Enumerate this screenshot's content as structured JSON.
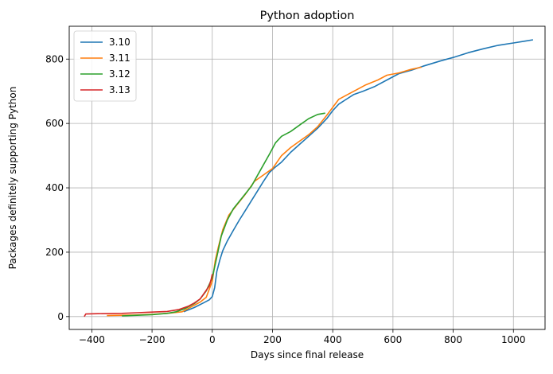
{
  "chart_data": {
    "type": "line",
    "title": "Python adoption",
    "xlabel": "Days since final release",
    "ylabel": "Packages definitely supporting Python",
    "xlim": [
      -475,
      1105
    ],
    "ylim": [
      -40,
      902
    ],
    "xticks": [
      -400,
      -200,
      0,
      200,
      400,
      600,
      800,
      1000
    ],
    "yticks": [
      0,
      200,
      400,
      600,
      800
    ],
    "grid": true,
    "legend_position": "top-left",
    "series": [
      {
        "name": "3.10",
        "color": "#1f77b4",
        "points": [
          [
            -95,
            15
          ],
          [
            -60,
            28
          ],
          [
            -30,
            42
          ],
          [
            -10,
            52
          ],
          [
            0,
            62
          ],
          [
            8,
            90
          ],
          [
            15,
            140
          ],
          [
            25,
            175
          ],
          [
            35,
            205
          ],
          [
            50,
            235
          ],
          [
            70,
            268
          ],
          [
            90,
            300
          ],
          [
            110,
            330
          ],
          [
            130,
            360
          ],
          [
            150,
            390
          ],
          [
            170,
            420
          ],
          [
            190,
            448
          ],
          [
            210,
            465
          ],
          [
            230,
            480
          ],
          [
            260,
            510
          ],
          [
            290,
            535
          ],
          [
            320,
            560
          ],
          [
            350,
            585
          ],
          [
            380,
            615
          ],
          [
            400,
            640
          ],
          [
            420,
            660
          ],
          [
            440,
            672
          ],
          [
            470,
            690
          ],
          [
            500,
            700
          ],
          [
            540,
            715
          ],
          [
            580,
            735
          ],
          [
            620,
            755
          ],
          [
            660,
            765
          ],
          [
            700,
            778
          ],
          [
            760,
            795
          ],
          [
            800,
            805
          ],
          [
            850,
            820
          ],
          [
            900,
            832
          ],
          [
            950,
            843
          ],
          [
            1000,
            850
          ],
          [
            1040,
            856
          ],
          [
            1065,
            860
          ]
        ]
      },
      {
        "name": "3.11",
        "color": "#ff7f0e",
        "points": [
          [
            -350,
            3
          ],
          [
            -250,
            5
          ],
          [
            -200,
            7
          ],
          [
            -150,
            10
          ],
          [
            -100,
            15
          ],
          [
            -70,
            30
          ],
          [
            -40,
            45
          ],
          [
            -20,
            60
          ],
          [
            0,
            110
          ],
          [
            10,
            175
          ],
          [
            20,
            215
          ],
          [
            35,
            270
          ],
          [
            55,
            315
          ],
          [
            80,
            345
          ],
          [
            110,
            380
          ],
          [
            140,
            420
          ],
          [
            170,
            440
          ],
          [
            200,
            460
          ],
          [
            230,
            500
          ],
          [
            260,
            525
          ],
          [
            290,
            545
          ],
          [
            320,
            565
          ],
          [
            350,
            590
          ],
          [
            380,
            625
          ],
          [
            400,
            650
          ],
          [
            420,
            675
          ],
          [
            450,
            690
          ],
          [
            480,
            705
          ],
          [
            510,
            720
          ],
          [
            550,
            735
          ],
          [
            580,
            750
          ],
          [
            620,
            757
          ],
          [
            660,
            768
          ],
          [
            695,
            775
          ]
        ]
      },
      {
        "name": "3.12",
        "color": "#2ca02c",
        "points": [
          [
            -300,
            2
          ],
          [
            -250,
            4
          ],
          [
            -200,
            6
          ],
          [
            -150,
            10
          ],
          [
            -120,
            15
          ],
          [
            -90,
            25
          ],
          [
            -60,
            40
          ],
          [
            -40,
            55
          ],
          [
            -20,
            80
          ],
          [
            0,
            120
          ],
          [
            15,
            185
          ],
          [
            30,
            250
          ],
          [
            50,
            300
          ],
          [
            70,
            335
          ],
          [
            100,
            370
          ],
          [
            130,
            405
          ],
          [
            160,
            455
          ],
          [
            190,
            505
          ],
          [
            210,
            540
          ],
          [
            230,
            560
          ],
          [
            260,
            575
          ],
          [
            290,
            595
          ],
          [
            320,
            615
          ],
          [
            350,
            628
          ],
          [
            375,
            632
          ]
        ]
      },
      {
        "name": "3.13",
        "color": "#d62728",
        "points": [
          [
            -425,
            0
          ],
          [
            -420,
            8
          ],
          [
            -380,
            9
          ],
          [
            -300,
            10
          ],
          [
            -250,
            12
          ],
          [
            -200,
            14
          ],
          [
            -150,
            16
          ],
          [
            -110,
            22
          ],
          [
            -80,
            32
          ],
          [
            -60,
            42
          ],
          [
            -40,
            55
          ],
          [
            -25,
            75
          ],
          [
            -10,
            95
          ],
          [
            -3,
            118
          ],
          [
            0,
            132
          ]
        ]
      }
    ]
  }
}
